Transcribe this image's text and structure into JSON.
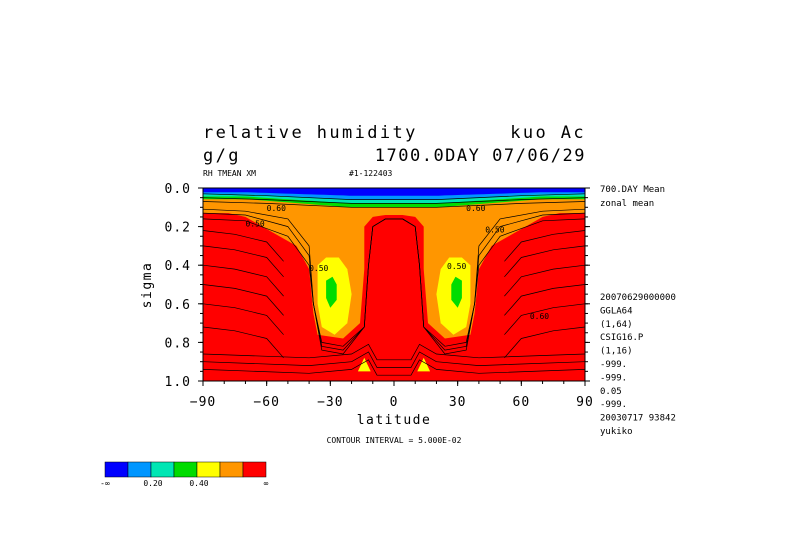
{
  "header": {
    "title_left": "relative humidity",
    "title_right": "kuo Ac",
    "units": "g/g",
    "time_label": "1700.0DAY 07/06/29",
    "var_label": "RH TMEAN XM",
    "run_id": "#1-122403"
  },
  "side_info": {
    "top": [
      "700.DAY Mean",
      "zonal mean"
    ],
    "bottom": [
      "20070629000000",
      "GGLA64",
      "(1,64)",
      "CSIG16.P",
      "(1,16)",
      "-999.",
      "-999.",
      "0.05",
      "-999.",
      "20030717  93842",
      "yukiko"
    ]
  },
  "footer": {
    "contour_interval": "CONTOUR INTERVAL = 5.000E-02"
  },
  "colors": {
    "levels": [
      "#0000ff",
      "#0096ff",
      "#00e6b4",
      "#00dc00",
      "#ffff00",
      "#ff9600",
      "#ff0000"
    ],
    "bar_labels": [
      "-∞",
      "0.20",
      "0.40",
      "∞"
    ]
  },
  "chart_data": {
    "type": "heatmap",
    "subtype": "filled contour",
    "title": "relative humidity",
    "xlabel": "latitude",
    "ylabel": "sigma",
    "xlim": [
      -90,
      90
    ],
    "ylim": [
      1.0,
      0.0
    ],
    "x_ticks": [
      "−90",
      "−60",
      "−30",
      "0",
      "30",
      "60",
      "90"
    ],
    "y_ticks": [
      "0.0",
      "0.2",
      "0.4",
      "0.6",
      "0.8",
      "1.0"
    ],
    "contour_interval": 0.05,
    "contour_labels": [
      "0.50",
      "0.50",
      "0.50",
      "0.50",
      "0.60",
      "0.60",
      "0.60"
    ],
    "maxima_note": "RH lowest (<0.2) near sigma 0.0-0.1; minima ~0.3 at latitude ±30, sigma ~0.55; >0.6 elsewhere"
  }
}
